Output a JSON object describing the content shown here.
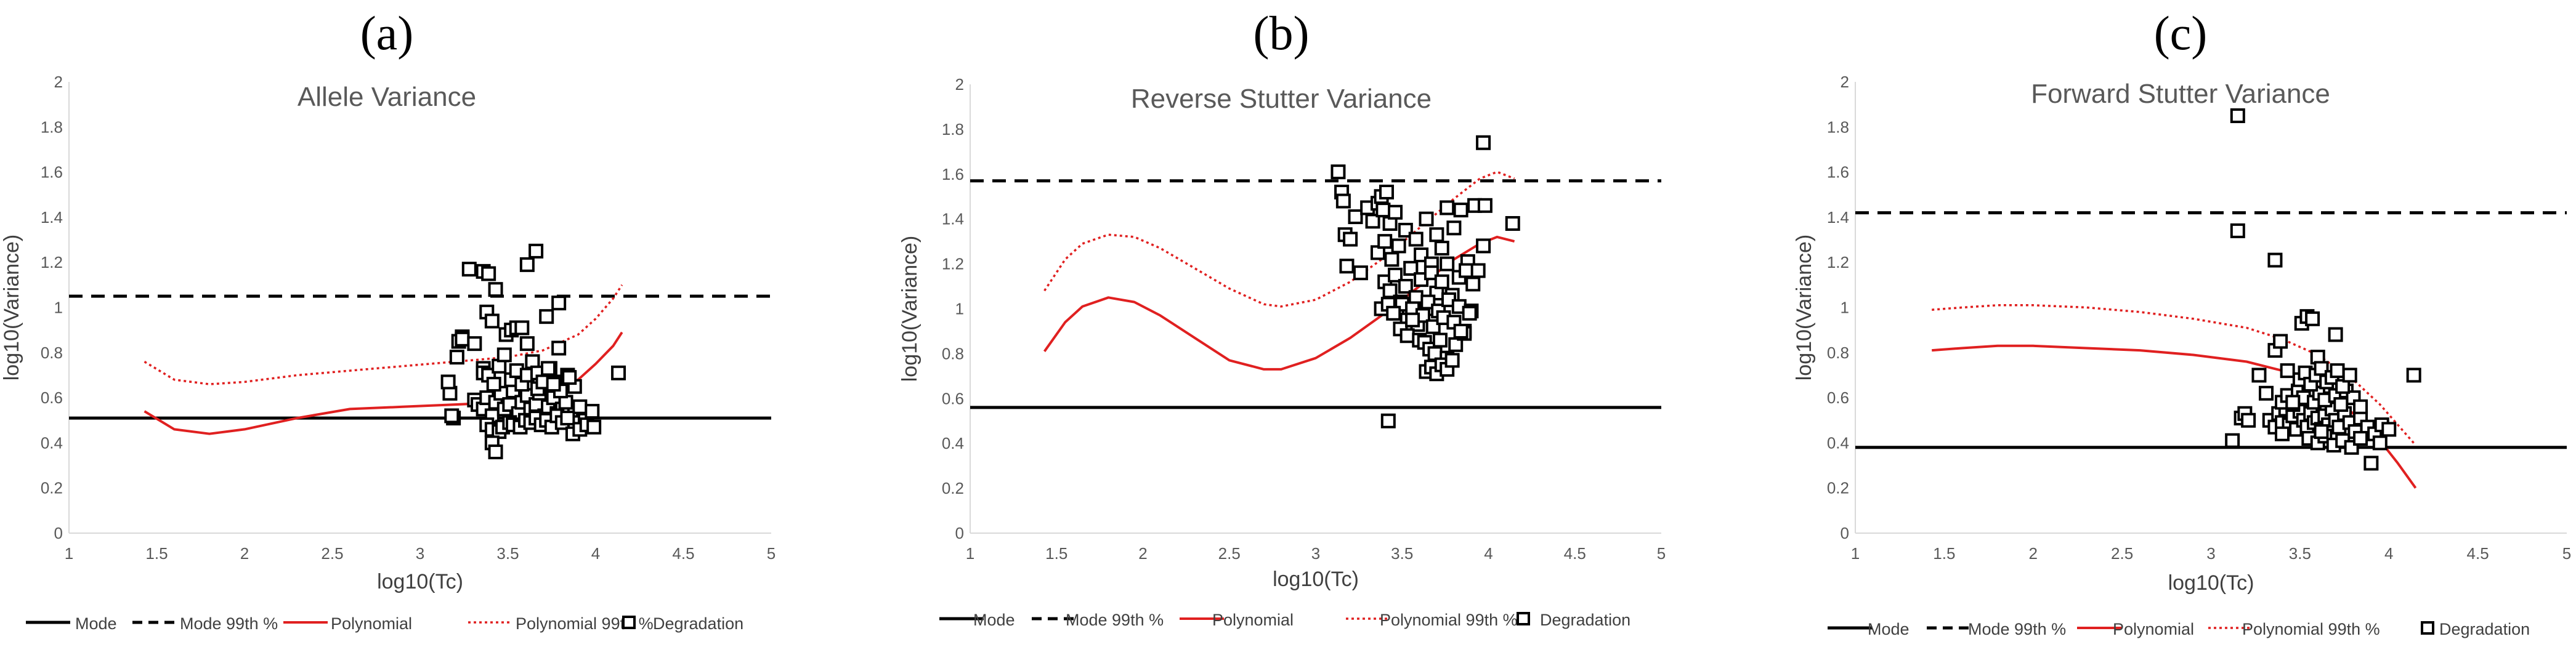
{
  "chart_data": [
    {
      "panel": "(a)",
      "type": "scatter",
      "title": "Allele Variance",
      "xlabel": "log10(Tc)",
      "ylabel": "log10(Variance)",
      "xlim": [
        1,
        5
      ],
      "ylim": [
        0,
        2
      ],
      "xticks": [
        1,
        1.5,
        2,
        2.5,
        3,
        3.5,
        4,
        4.5,
        5
      ],
      "yticks": [
        0,
        0.2,
        0.4,
        0.6,
        0.8,
        1,
        1.2,
        1.4,
        1.6,
        1.8,
        2
      ],
      "mode": 0.51,
      "mode_99": 1.05,
      "polynomial": {
        "x": [
          1.43,
          1.6,
          1.8,
          2.0,
          2.3,
          2.6,
          2.9,
          3.2,
          3.5,
          3.7,
          3.9,
          4.0,
          4.1,
          4.15
        ],
        "y": [
          0.54,
          0.46,
          0.44,
          0.46,
          0.51,
          0.55,
          0.56,
          0.57,
          0.58,
          0.61,
          0.68,
          0.75,
          0.83,
          0.89
        ]
      },
      "polynomial_99": {
        "x": [
          1.43,
          1.6,
          1.8,
          2.0,
          2.3,
          2.6,
          2.9,
          3.2,
          3.5,
          3.7,
          3.9,
          4.0,
          4.1,
          4.15
        ],
        "y": [
          0.76,
          0.68,
          0.66,
          0.67,
          0.7,
          0.72,
          0.74,
          0.76,
          0.78,
          0.81,
          0.88,
          0.95,
          1.04,
          1.1
        ]
      },
      "degradation": {
        "x": [
          3.19,
          3.18,
          3.21,
          3.22,
          3.24,
          3.24,
          3.17,
          3.16,
          3.28,
          3.31,
          3.36,
          3.36,
          3.38,
          3.39,
          3.41,
          3.43,
          3.61,
          3.66,
          3.72,
          3.79,
          3.31,
          3.33,
          3.36,
          3.38,
          3.41,
          3.43,
          3.46,
          3.48,
          3.51,
          3.53,
          3.56,
          3.58,
          3.61,
          3.63,
          3.66,
          3.68,
          3.71,
          3.73,
          3.76,
          3.78,
          3.81,
          3.83,
          3.86,
          3.88,
          3.91,
          3.94,
          3.98,
          3.36,
          3.39,
          3.42,
          3.45,
          3.48,
          3.52,
          3.55,
          3.58,
          3.61,
          3.64,
          3.67,
          3.7,
          3.74,
          3.77,
          3.8,
          3.84,
          3.88,
          3.49,
          3.52,
          3.55,
          3.58,
          3.61,
          3.64,
          3.67,
          3.7,
          3.73,
          3.76,
          3.79,
          3.85,
          3.38,
          3.41,
          3.45,
          3.47,
          3.51,
          3.53,
          3.57,
          3.6,
          3.63,
          3.66,
          3.69,
          3.72,
          3.75,
          3.78,
          3.81,
          3.84,
          3.87,
          3.91,
          3.95,
          3.99,
          4.13,
          3.41,
          3.43
        ],
        "y": [
          0.51,
          0.52,
          0.78,
          0.85,
          0.87,
          0.86,
          0.62,
          0.67,
          1.17,
          0.84,
          1.16,
          0.73,
          0.98,
          1.15,
          0.94,
          1.08,
          1.19,
          1.25,
          0.96,
          1.02,
          0.59,
          0.57,
          0.55,
          0.6,
          0.52,
          0.58,
          0.62,
          0.55,
          0.57,
          0.63,
          0.53,
          0.58,
          0.61,
          0.55,
          0.57,
          0.62,
          0.52,
          0.56,
          0.6,
          0.53,
          0.55,
          0.58,
          0.51,
          0.49,
          0.56,
          0.5,
          0.54,
          0.71,
          0.7,
          0.66,
          0.74,
          0.79,
          0.68,
          0.72,
          0.66,
          0.7,
          0.76,
          0.64,
          0.69,
          0.73,
          0.67,
          0.63,
          0.7,
          0.65,
          0.88,
          0.9,
          0.91,
          0.91,
          0.84,
          0.76,
          0.71,
          0.67,
          0.73,
          0.66,
          0.82,
          0.69,
          0.48,
          0.46,
          0.45,
          0.47,
          0.49,
          0.48,
          0.47,
          0.5,
          0.49,
          0.51,
          0.48,
          0.5,
          0.47,
          0.52,
          0.49,
          0.51,
          0.44,
          0.46,
          0.48,
          0.47,
          0.71,
          0.4,
          0.36
        ]
      }
    },
    {
      "panel": "(b)",
      "type": "scatter",
      "title": "Reverse Stutter Variance",
      "xlabel": "log10(Tc)",
      "ylabel": "log10(Variance)",
      "xlim": [
        1,
        5
      ],
      "ylim": [
        0,
        2
      ],
      "xticks": [
        1,
        1.5,
        2,
        2.5,
        3,
        3.5,
        4,
        4.5,
        5
      ],
      "yticks": [
        0,
        0.2,
        0.4,
        0.6,
        0.8,
        1,
        1.2,
        1.4,
        1.6,
        1.8,
        2
      ],
      "mode": 0.56,
      "mode_99": 1.57,
      "polynomial": {
        "x": [
          1.43,
          1.55,
          1.65,
          1.8,
          1.95,
          2.1,
          2.3,
          2.5,
          2.7,
          2.8,
          3.0,
          3.2,
          3.4,
          3.6,
          3.8,
          3.95,
          4.05,
          4.15
        ],
        "y": [
          0.81,
          0.94,
          1.01,
          1.05,
          1.03,
          0.97,
          0.87,
          0.77,
          0.73,
          0.73,
          0.78,
          0.87,
          0.98,
          1.1,
          1.22,
          1.29,
          1.32,
          1.3
        ]
      },
      "polynomial_99": {
        "x": [
          1.43,
          1.55,
          1.65,
          1.8,
          1.95,
          2.1,
          2.3,
          2.5,
          2.7,
          2.8,
          3.0,
          3.2,
          3.4,
          3.6,
          3.8,
          3.95,
          4.05,
          4.15
        ],
        "y": [
          1.08,
          1.22,
          1.29,
          1.33,
          1.32,
          1.27,
          1.18,
          1.09,
          1.02,
          1.01,
          1.04,
          1.12,
          1.23,
          1.36,
          1.49,
          1.58,
          1.61,
          1.58
        ]
      },
      "degradation": {
        "x": [
          3.13,
          3.15,
          3.16,
          3.17,
          3.18,
          3.2,
          3.23,
          3.26,
          3.3,
          3.33,
          3.36,
          3.38,
          3.39,
          3.41,
          3.43,
          3.46,
          3.36,
          3.4,
          3.44,
          3.48,
          3.52,
          3.55,
          3.58,
          3.61,
          3.64,
          3.67,
          3.7,
          3.73,
          3.76,
          3.8,
          3.84,
          3.88,
          3.92,
          3.97,
          3.4,
          3.43,
          3.46,
          3.49,
          3.52,
          3.55,
          3.58,
          3.61,
          3.64,
          3.67,
          3.7,
          3.73,
          3.76,
          3.79,
          3.83,
          3.87,
          3.91,
          3.47,
          3.5,
          3.53,
          3.56,
          3.59,
          3.62,
          3.65,
          3.68,
          3.71,
          3.74,
          3.77,
          3.8,
          3.83,
          3.86,
          3.9,
          3.94,
          3.98,
          4.14,
          3.38,
          3.42,
          3.45,
          3.49,
          3.53,
          3.56,
          3.6,
          3.63,
          3.66,
          3.69,
          3.72,
          3.76,
          3.81,
          3.86,
          3.64,
          3.67,
          3.7,
          3.73,
          3.76,
          3.79,
          3.84,
          3.89,
          3.42,
          3.97
        ],
        "y": [
          1.61,
          1.52,
          1.48,
          1.33,
          1.19,
          1.31,
          1.41,
          1.16,
          1.45,
          1.39,
          1.47,
          1.5,
          1.44,
          1.52,
          1.38,
          1.43,
          1.25,
          1.3,
          1.22,
          1.28,
          1.35,
          1.18,
          1.31,
          1.24,
          1.4,
          1.2,
          1.33,
          1.27,
          1.45,
          1.36,
          1.44,
          1.21,
          1.46,
          1.74,
          1.12,
          1.08,
          1.15,
          1.03,
          1.1,
          1.18,
          1.05,
          1.13,
          1.0,
          1.16,
          1.07,
          1.12,
          1.2,
          1.06,
          1.14,
          1.17,
          1.11,
          0.98,
          1.02,
          0.95,
          1.0,
          0.93,
          0.97,
          1.03,
          0.92,
          0.99,
          0.96,
          1.04,
          0.94,
          1.01,
          0.9,
          0.99,
          1.17,
          1.46,
          1.38,
          1.0,
          1.02,
          0.98,
          0.91,
          0.88,
          0.95,
          0.86,
          0.85,
          0.82,
          0.8,
          0.86,
          0.78,
          0.84,
          0.89,
          0.72,
          0.74,
          0.71,
          0.75,
          0.73,
          0.77,
          0.9,
          0.98,
          0.5,
          1.28
        ]
      }
    },
    {
      "panel": "(c)",
      "type": "scatter",
      "title": "Forward Stutter Variance",
      "xlabel": "log10(Tc)",
      "ylabel": "log10(Variance)",
      "xlim": [
        1,
        5
      ],
      "ylim": [
        0,
        2
      ],
      "xticks": [
        1,
        1.5,
        2,
        2.5,
        3,
        3.5,
        4,
        4.5,
        5
      ],
      "yticks": [
        0,
        0.2,
        0.4,
        0.6,
        0.8,
        1,
        1.2,
        1.4,
        1.6,
        1.8,
        2
      ],
      "mode": 0.38,
      "mode_99": 1.42,
      "polynomial": {
        "x": [
          1.43,
          1.6,
          1.8,
          2.0,
          2.3,
          2.6,
          2.9,
          3.2,
          3.4,
          3.6,
          3.8,
          3.95,
          4.05,
          4.15
        ],
        "y": [
          0.81,
          0.82,
          0.83,
          0.83,
          0.82,
          0.81,
          0.79,
          0.76,
          0.72,
          0.65,
          0.53,
          0.41,
          0.31,
          0.2
        ]
      },
      "polynomial_99": {
        "x": [
          1.43,
          1.6,
          1.8,
          2.0,
          2.3,
          2.6,
          2.9,
          3.2,
          3.4,
          3.6,
          3.8,
          3.95,
          4.05,
          4.15
        ],
        "y": [
          0.99,
          1.0,
          1.01,
          1.01,
          1.0,
          0.98,
          0.95,
          0.91,
          0.86,
          0.79,
          0.68,
          0.57,
          0.48,
          0.39
        ]
      },
      "degradation": {
        "x": [
          3.15,
          3.15,
          3.36,
          3.12,
          3.17,
          3.19,
          3.21,
          3.27,
          3.31,
          3.36,
          3.39,
          3.43,
          3.51,
          3.54,
          3.57,
          3.6,
          3.7,
          3.33,
          3.36,
          3.38,
          3.4,
          3.42,
          3.44,
          3.46,
          3.48,
          3.5,
          3.52,
          3.54,
          3.56,
          3.58,
          3.6,
          3.62,
          3.64,
          3.66,
          3.68,
          3.7,
          3.72,
          3.75,
          3.78,
          3.81,
          3.84,
          3.88,
          3.92,
          3.96,
          4.0,
          3.4,
          3.43,
          3.46,
          3.49,
          3.52,
          3.55,
          3.58,
          3.61,
          3.64,
          3.67,
          3.7,
          3.73,
          3.76,
          3.8,
          3.84,
          3.5,
          3.53,
          3.56,
          3.59,
          3.62,
          3.65,
          3.68,
          3.71,
          3.74,
          3.78,
          3.55,
          3.6,
          3.64,
          3.69,
          3.74,
          3.79,
          3.84,
          3.9,
          3.95,
          4.14,
          3.4,
          3.46,
          3.62
        ],
        "y": [
          1.85,
          1.34,
          1.21,
          0.41,
          0.51,
          0.53,
          0.5,
          0.7,
          0.62,
          0.81,
          0.85,
          0.72,
          0.93,
          0.96,
          0.95,
          0.78,
          0.88,
          0.5,
          0.47,
          0.53,
          0.49,
          0.55,
          0.48,
          0.52,
          0.46,
          0.54,
          0.5,
          0.47,
          0.53,
          0.49,
          0.51,
          0.46,
          0.52,
          0.48,
          0.55,
          0.5,
          0.47,
          0.53,
          0.49,
          0.45,
          0.51,
          0.47,
          0.44,
          0.48,
          0.46,
          0.58,
          0.61,
          0.57,
          0.63,
          0.6,
          0.66,
          0.58,
          0.62,
          0.59,
          0.65,
          0.61,
          0.57,
          0.63,
          0.6,
          0.56,
          0.68,
          0.71,
          0.66,
          0.7,
          0.73,
          0.67,
          0.69,
          0.72,
          0.65,
          0.7,
          0.42,
          0.4,
          0.43,
          0.39,
          0.41,
          0.38,
          0.42,
          0.31,
          0.4,
          0.7,
          0.44,
          0.58,
          0.45
        ]
      }
    }
  ],
  "legend": {
    "mode": "Mode",
    "mode_99": "Mode 99th %",
    "polynomial": "Polynomial",
    "polynomial_99": "Polynomial 99th %",
    "degradation": "Degradation"
  },
  "colors": {
    "polynomial": "#e02020",
    "mode": "#000000",
    "axis": "#d9d9d9",
    "tick_text": "#595959"
  }
}
